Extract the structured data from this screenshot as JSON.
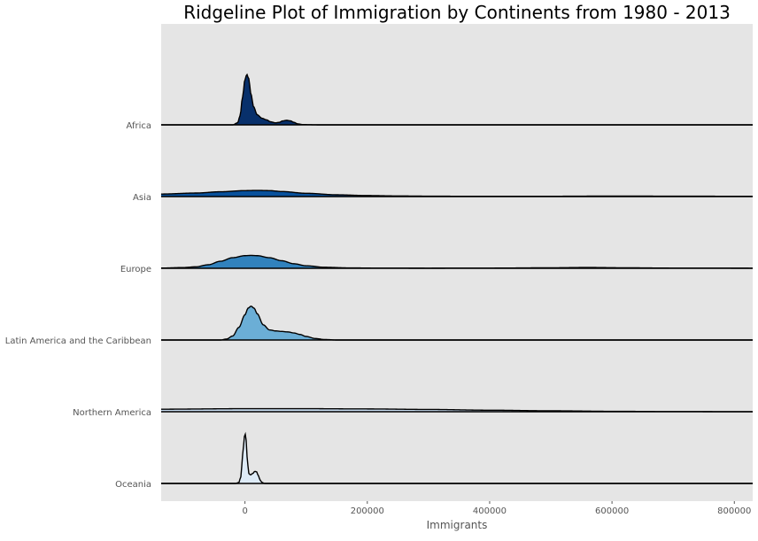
{
  "chart_data": {
    "type": "area",
    "subtype": "ridgeline",
    "title": "Ridgeline Plot of Immigration by Continents from 1980 - 2013",
    "xlabel": "Immigrants",
    "ylabel": "",
    "xlim": [
      -137000,
      830000
    ],
    "x_ticks": [
      0,
      200000,
      400000,
      600000,
      800000
    ],
    "x_tick_labels": [
      "0",
      "200000",
      "400000",
      "600000",
      "800000"
    ],
    "grid": false,
    "background": "#e5e5e5",
    "categories": [
      "Africa",
      "Asia",
      "Europe",
      "Latin America and the Caribbean",
      "Northern America",
      "Oceania"
    ],
    "series": [
      {
        "name": "Africa",
        "color": "#08306b",
        "x": [
          -137000,
          -20000,
          -12000,
          -8000,
          -4000,
          0,
          3000,
          6000,
          10000,
          14000,
          20000,
          28000,
          35000,
          42000,
          50000,
          56000,
          62000,
          68000,
          74000,
          80000,
          86000,
          95000,
          120000,
          200000,
          830000
        ],
        "density": [
          0,
          0,
          0.04,
          0.18,
          0.55,
          0.9,
          1.0,
          0.92,
          0.6,
          0.36,
          0.2,
          0.13,
          0.1,
          0.06,
          0.04,
          0.05,
          0.08,
          0.09,
          0.08,
          0.05,
          0.02,
          0.005,
          0,
          0,
          0
        ]
      },
      {
        "name": "Asia",
        "color": "#08519c",
        "x": [
          -137000,
          -80000,
          -40000,
          0,
          20000,
          40000,
          60000,
          100000,
          150000,
          200000,
          250000,
          300000,
          350000,
          400000,
          500000,
          600000,
          700000,
          830000
        ],
        "density": [
          0.05,
          0.07,
          0.095,
          0.118,
          0.122,
          0.118,
          0.1,
          0.065,
          0.035,
          0.02,
          0.012,
          0.008,
          0.006,
          0.005,
          0.006,
          0.01,
          0.008,
          0.005
        ]
      },
      {
        "name": "Europe",
        "color": "#3182bd",
        "x": [
          -137000,
          -100000,
          -80000,
          -60000,
          -40000,
          -20000,
          0,
          10000,
          20000,
          40000,
          60000,
          80000,
          100000,
          130000,
          170000,
          220000,
          300000,
          400000,
          500000,
          560000,
          620000,
          700000,
          830000
        ],
        "density": [
          0.005,
          0.015,
          0.03,
          0.07,
          0.14,
          0.21,
          0.25,
          0.255,
          0.25,
          0.21,
          0.15,
          0.09,
          0.05,
          0.02,
          0.008,
          0.003,
          0.002,
          0.004,
          0.01,
          0.016,
          0.01,
          0.004,
          0.002
        ]
      },
      {
        "name": "Latin America and the Caribbean",
        "color": "#6baed6",
        "x": [
          -137000,
          -40000,
          -30000,
          -20000,
          -10000,
          0,
          5000,
          10000,
          15000,
          20000,
          30000,
          40000,
          50000,
          60000,
          70000,
          80000,
          90000,
          100000,
          115000,
          130000,
          150000,
          830000
        ],
        "density": [
          0,
          0,
          0.02,
          0.08,
          0.25,
          0.5,
          0.63,
          0.67,
          0.63,
          0.52,
          0.3,
          0.2,
          0.18,
          0.17,
          0.16,
          0.14,
          0.11,
          0.07,
          0.03,
          0.01,
          0,
          0
        ]
      },
      {
        "name": "Northern America",
        "color": "#c6dbef",
        "x": [
          -137000,
          0,
          100000,
          200000,
          300000,
          400000,
          500000,
          600000,
          700000,
          830000
        ],
        "density": [
          0.05,
          0.06,
          0.06,
          0.055,
          0.045,
          0.03,
          0.018,
          0.008,
          0.003,
          0.001
        ]
      },
      {
        "name": "Oceania",
        "color": "#deebf7",
        "x": [
          -137000,
          -15000,
          -10000,
          -7000,
          -5000,
          -3000,
          0,
          2000,
          4000,
          6000,
          9000,
          13000,
          16000,
          19000,
          22000,
          25000,
          28000,
          32000,
          40000,
          830000
        ],
        "density": [
          0,
          0,
          0.02,
          0.12,
          0.35,
          0.7,
          1.0,
          0.85,
          0.45,
          0.2,
          0.17,
          0.2,
          0.24,
          0.23,
          0.15,
          0.06,
          0.02,
          0,
          0,
          0
        ]
      }
    ]
  }
}
